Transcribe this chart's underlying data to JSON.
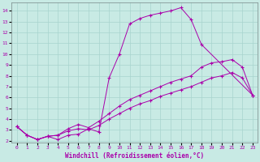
{
  "xlabel": "Windchill (Refroidissement éolien,°C)",
  "bg_color": "#c8eae4",
  "grid_color": "#a8d4ce",
  "line_color": "#aa00aa",
  "xlim": [
    -0.5,
    23.5
  ],
  "ylim": [
    1.8,
    14.8
  ],
  "xticks": [
    0,
    1,
    2,
    3,
    4,
    5,
    6,
    7,
    8,
    9,
    10,
    11,
    12,
    13,
    14,
    15,
    16,
    17,
    18,
    19,
    20,
    21,
    22,
    23
  ],
  "yticks": [
    2,
    3,
    4,
    5,
    6,
    7,
    8,
    9,
    10,
    11,
    12,
    13,
    14
  ],
  "line1_x": [
    0,
    1,
    2,
    3,
    4,
    5,
    6,
    7,
    8,
    9,
    10,
    11,
    12,
    13,
    14,
    15,
    16,
    17,
    18,
    23
  ],
  "line1_y": [
    3.3,
    2.5,
    2.1,
    2.4,
    2.1,
    2.5,
    2.6,
    3.1,
    2.8,
    7.8,
    10.0,
    12.8,
    13.3,
    13.6,
    13.8,
    14.0,
    14.3,
    13.2,
    10.9,
    6.2
  ],
  "line2_x": [
    0,
    1,
    2,
    3,
    4,
    5,
    6,
    7,
    8,
    9,
    10,
    11,
    12,
    13,
    14,
    15,
    16,
    17,
    18,
    19,
    20,
    21,
    22,
    23
  ],
  "line2_y": [
    3.3,
    2.5,
    2.1,
    2.4,
    2.5,
    3.1,
    3.5,
    3.2,
    3.8,
    4.5,
    5.2,
    5.8,
    6.2,
    6.6,
    7.0,
    7.4,
    7.7,
    8.0,
    8.8,
    9.2,
    9.3,
    9.5,
    8.8,
    6.2
  ],
  "line3_x": [
    0,
    1,
    2,
    3,
    4,
    5,
    6,
    7,
    8,
    9,
    10,
    11,
    12,
    13,
    14,
    15,
    16,
    17,
    18,
    19,
    20,
    21,
    22,
    23
  ],
  "line3_y": [
    3.3,
    2.5,
    2.1,
    2.4,
    2.5,
    2.9,
    3.1,
    3.0,
    3.4,
    4.0,
    4.5,
    5.0,
    5.4,
    5.7,
    6.1,
    6.4,
    6.7,
    7.0,
    7.4,
    7.8,
    8.0,
    8.3,
    7.8,
    6.2
  ]
}
